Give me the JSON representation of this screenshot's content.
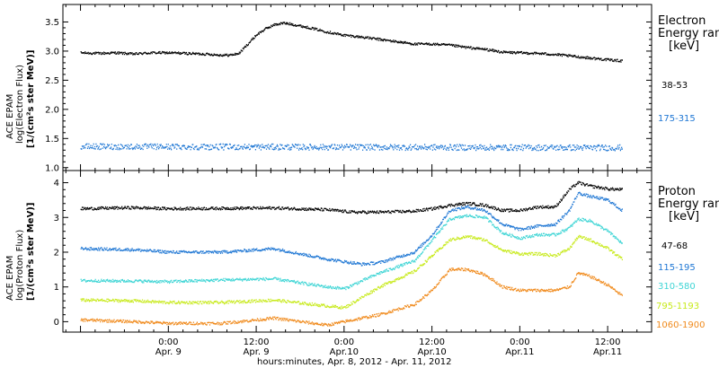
{
  "chart_data": [
    {
      "type": "scatter",
      "panel": "electron",
      "ylabel": [
        "ACE EPAM",
        "log(Electron Flux)",
        "[1/(cm²s ster MeV)]"
      ],
      "ylim": [
        0.95,
        3.8
      ],
      "yticks": [
        1.0,
        1.5,
        2.0,
        2.5,
        3.0,
        3.5
      ],
      "ytick_labels": [
        "1.0",
        "1.5",
        "2.0",
        "2.5",
        "3.0",
        "3.5"
      ],
      "legend_title": [
        "Electron",
        "Energy range",
        "[keV]"
      ],
      "series": [
        {
          "name": "38-53",
          "color": "#000000",
          "x": [
            -0.5,
            -0.4,
            -0.3,
            -0.2,
            -0.1,
            0.0,
            0.1,
            0.2,
            0.3,
            0.35,
            0.4,
            0.45,
            0.5,
            0.55,
            0.6,
            0.65,
            0.7,
            0.8,
            0.9,
            1.0,
            1.1,
            1.2,
            1.3,
            1.4,
            1.5,
            1.6,
            1.7,
            1.8,
            1.9,
            2.0,
            2.1,
            2.2,
            2.3,
            2.4,
            2.5,
            2.58
          ],
          "y": [
            2.97,
            2.96,
            2.97,
            2.95,
            2.97,
            2.97,
            2.96,
            2.95,
            2.93,
            2.93,
            2.96,
            3.12,
            3.28,
            3.38,
            3.45,
            3.48,
            3.46,
            3.4,
            3.33,
            3.27,
            3.24,
            3.2,
            3.16,
            3.12,
            3.12,
            3.1,
            3.06,
            3.03,
            2.98,
            2.97,
            2.96,
            2.94,
            2.91,
            2.88,
            2.85,
            2.83
          ]
        },
        {
          "name": "175-315",
          "color": "#1f77d4",
          "x": [
            -0.5,
            2.58
          ],
          "y": [
            1.36,
            1.34
          ]
        }
      ]
    },
    {
      "type": "scatter",
      "panel": "proton",
      "ylabel": [
        "ACE EPAM",
        "log(Proton Flux)",
        "[1/(cm²s ster MeV)]"
      ],
      "ylim": [
        -0.3,
        4.35
      ],
      "yticks": [
        0,
        1,
        2,
        3,
        4
      ],
      "ytick_labels": [
        "0",
        "1",
        "2",
        "3",
        "4"
      ],
      "legend_title": [
        "Proton",
        "Energy range",
        "[keV]"
      ],
      "series": [
        {
          "name": "47-68",
          "color": "#000000",
          "x": [
            -0.5,
            -0.2,
            0.0,
            0.3,
            0.6,
            0.9,
            1.05,
            1.2,
            1.4,
            1.5,
            1.6,
            1.7,
            1.8,
            1.9,
            2.0,
            2.1,
            2.2,
            2.28,
            2.33,
            2.4,
            2.5,
            2.58
          ],
          "y": [
            3.25,
            3.28,
            3.25,
            3.26,
            3.27,
            3.22,
            3.15,
            3.15,
            3.18,
            3.25,
            3.35,
            3.4,
            3.35,
            3.2,
            3.2,
            3.3,
            3.3,
            3.8,
            4.0,
            3.9,
            3.82,
            3.8
          ]
        },
        {
          "name": "115-195",
          "color": "#1f77d4",
          "x": [
            -0.5,
            -0.2,
            0.0,
            0.3,
            0.6,
            0.9,
            1.1,
            1.2,
            1.4,
            1.5,
            1.6,
            1.7,
            1.8,
            1.9,
            2.0,
            2.1,
            2.2,
            2.28,
            2.33,
            2.4,
            2.5,
            2.58
          ],
          "y": [
            2.1,
            2.07,
            2.0,
            2.0,
            2.1,
            1.8,
            1.65,
            1.7,
            2.0,
            2.5,
            3.2,
            3.3,
            3.2,
            2.8,
            2.65,
            2.75,
            2.8,
            3.2,
            3.7,
            3.6,
            3.5,
            3.2
          ]
        },
        {
          "name": "310-580",
          "color": "#3fd5d5",
          "x": [
            -0.5,
            -0.2,
            0.0,
            0.3,
            0.6,
            0.9,
            1.0,
            1.2,
            1.4,
            1.5,
            1.6,
            1.7,
            1.8,
            1.9,
            2.0,
            2.1,
            2.2,
            2.28,
            2.33,
            2.4,
            2.5,
            2.58
          ],
          "y": [
            1.18,
            1.17,
            1.15,
            1.2,
            1.23,
            1.0,
            0.95,
            1.4,
            1.75,
            2.35,
            2.95,
            3.05,
            3.0,
            2.55,
            2.4,
            2.5,
            2.5,
            2.7,
            2.95,
            2.9,
            2.6,
            2.25
          ]
        },
        {
          "name": "795-1193",
          "color": "#c8ea1c",
          "x": [
            -0.5,
            -0.2,
            0.0,
            0.3,
            0.6,
            0.9,
            1.0,
            1.2,
            1.4,
            1.5,
            1.6,
            1.7,
            1.8,
            1.9,
            2.0,
            2.1,
            2.2,
            2.28,
            2.33,
            2.4,
            2.5,
            2.58
          ],
          "y": [
            0.62,
            0.6,
            0.55,
            0.55,
            0.62,
            0.45,
            0.4,
            1.0,
            1.45,
            1.9,
            2.35,
            2.45,
            2.35,
            2.05,
            1.95,
            1.95,
            1.9,
            2.1,
            2.45,
            2.35,
            2.1,
            1.8
          ]
        },
        {
          "name": "1060-1900",
          "color": "#f08a1c",
          "x": [
            -0.5,
            -0.2,
            0.0,
            0.3,
            0.6,
            0.9,
            1.05,
            1.2,
            1.4,
            1.5,
            1.6,
            1.7,
            1.8,
            1.9,
            2.0,
            2.1,
            2.2,
            2.28,
            2.33,
            2.4,
            2.5,
            2.58
          ],
          "y": [
            0.05,
            0.0,
            -0.05,
            -0.05,
            0.1,
            -0.1,
            0.05,
            0.2,
            0.5,
            0.9,
            1.5,
            1.5,
            1.35,
            1.0,
            0.9,
            0.9,
            0.9,
            1.0,
            1.4,
            1.3,
            1.05,
            0.75
          ]
        }
      ]
    }
  ],
  "xaxis": {
    "tick_labels": [
      {
        "x": 0.0,
        "time": "0:00",
        "date": "Apr. 9"
      },
      {
        "x": 0.5,
        "time": "12:00",
        "date": "Apr. 9"
      },
      {
        "x": 1.0,
        "time": "0:00",
        "date": "Apr.10"
      },
      {
        "x": 1.5,
        "time": "12:00",
        "date": "Apr.10"
      },
      {
        "x": 2.0,
        "time": "0:00",
        "date": "Apr.11"
      },
      {
        "x": 2.5,
        "time": "12:00",
        "date": "Apr.11"
      }
    ],
    "xlim": [
      -0.6,
      2.75
    ],
    "label": "hours:minutes, Apr.  8, 2012 - Apr. 11, 2012"
  }
}
